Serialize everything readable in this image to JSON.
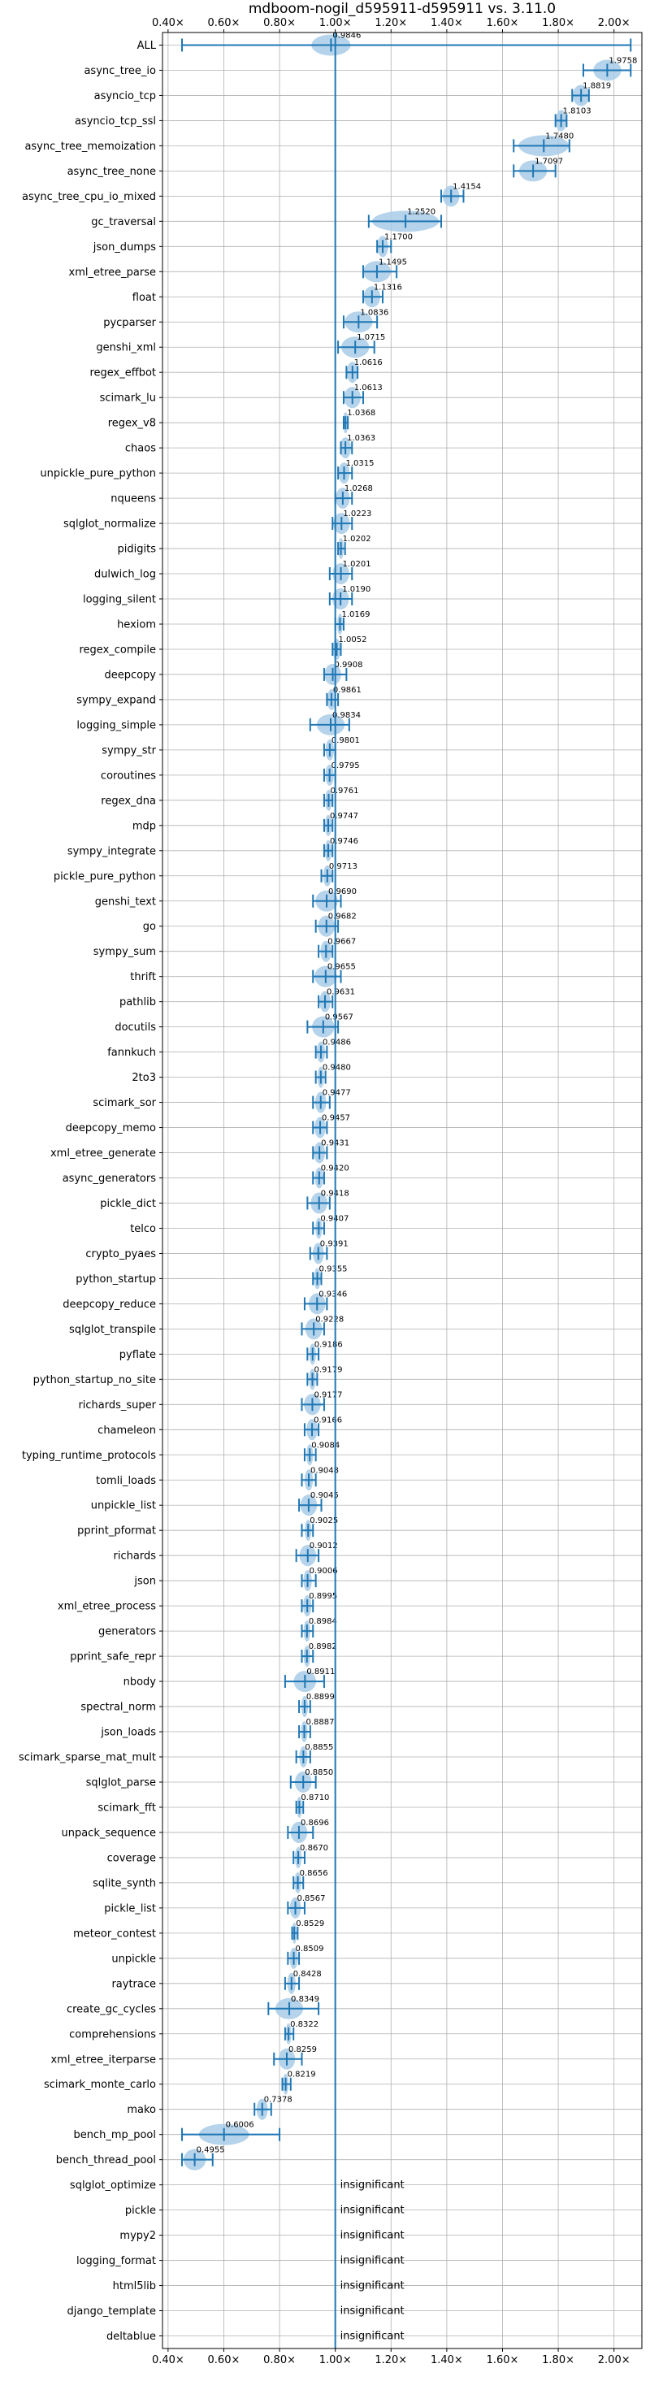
{
  "chart_data": {
    "type": "violin",
    "title": "mdboom-nogil_d595911-d595911 vs. 3.11.0",
    "xlim": [
      0.38,
      2.1
    ],
    "x_ticks": [
      0.4,
      0.6,
      0.8,
      1.0,
      1.2,
      1.4,
      1.6,
      1.8,
      2.0
    ],
    "x_tick_labels": [
      "0.40×",
      "0.60×",
      "0.80×",
      "1.00×",
      "1.20×",
      "1.40×",
      "1.60×",
      "1.80×",
      "2.00×"
    ],
    "reference_line": 1.0,
    "grid": true,
    "accent_color": "#1f77b4",
    "fill_color": "#a8cbe6",
    "insignificant_text": "insignificant",
    "benchmarks": [
      {
        "name": "ALL",
        "mean": 0.9846,
        "label": "0.9846",
        "min": 0.45,
        "max": 2.06,
        "spread": 0.07
      },
      {
        "name": "async_tree_io",
        "mean": 1.9758,
        "label": "1.9758",
        "min": 1.89,
        "max": 2.06,
        "spread": 0.05
      },
      {
        "name": "asyncio_tcp",
        "mean": 1.8819,
        "label": "1.8819",
        "min": 1.85,
        "max": 1.91,
        "spread": 0.03
      },
      {
        "name": "asyncio_tcp_ssl",
        "mean": 1.8103,
        "label": "1.8103",
        "min": 1.79,
        "max": 1.83,
        "spread": 0.02
      },
      {
        "name": "async_tree_memoization",
        "mean": 1.748,
        "label": "1.7480",
        "min": 1.64,
        "max": 1.84,
        "spread": 0.09
      },
      {
        "name": "async_tree_none",
        "mean": 1.7097,
        "label": "1.7097",
        "min": 1.64,
        "max": 1.79,
        "spread": 0.05
      },
      {
        "name": "async_tree_cpu_io_mixed",
        "mean": 1.4154,
        "label": "1.4154",
        "min": 1.38,
        "max": 1.46,
        "spread": 0.03
      },
      {
        "name": "gc_traversal",
        "mean": 1.252,
        "label": "1.2520",
        "min": 1.12,
        "max": 1.38,
        "spread": 0.12
      },
      {
        "name": "json_dumps",
        "mean": 1.17,
        "label": "1.1700",
        "min": 1.15,
        "max": 1.2,
        "spread": 0.02
      },
      {
        "name": "xml_etree_parse",
        "mean": 1.1495,
        "label": "1.1495",
        "min": 1.1,
        "max": 1.22,
        "spread": 0.05
      },
      {
        "name": "float",
        "mean": 1.1316,
        "label": "1.1316",
        "min": 1.1,
        "max": 1.17,
        "spread": 0.03
      },
      {
        "name": "pycparser",
        "mean": 1.0836,
        "label": "1.0836",
        "min": 1.03,
        "max": 1.15,
        "spread": 0.05
      },
      {
        "name": "genshi_xml",
        "mean": 1.0715,
        "label": "1.0715",
        "min": 1.01,
        "max": 1.14,
        "spread": 0.05
      },
      {
        "name": "regex_effbot",
        "mean": 1.0616,
        "label": "1.0616",
        "min": 1.04,
        "max": 1.08,
        "spread": 0.02
      },
      {
        "name": "scimark_lu",
        "mean": 1.0613,
        "label": "1.0613",
        "min": 1.03,
        "max": 1.1,
        "spread": 0.03
      },
      {
        "name": "regex_v8",
        "mean": 1.0368,
        "label": "1.0368",
        "min": 1.03,
        "max": 1.045,
        "spread": 0.01
      },
      {
        "name": "chaos",
        "mean": 1.0363,
        "label": "1.0363",
        "min": 1.02,
        "max": 1.06,
        "spread": 0.02
      },
      {
        "name": "unpickle_pure_python",
        "mean": 1.0315,
        "label": "1.0315",
        "min": 1.01,
        "max": 1.06,
        "spread": 0.02
      },
      {
        "name": "nqueens",
        "mean": 1.0268,
        "label": "1.0268",
        "min": 1.0,
        "max": 1.06,
        "spread": 0.025
      },
      {
        "name": "sqlglot_normalize",
        "mean": 1.0223,
        "label": "1.0223",
        "min": 0.99,
        "max": 1.06,
        "spread": 0.03
      },
      {
        "name": "pidigits",
        "mean": 1.0202,
        "label": "1.0202",
        "min": 1.01,
        "max": 1.035,
        "spread": 0.01
      },
      {
        "name": "dulwich_log",
        "mean": 1.0201,
        "label": "1.0201",
        "min": 0.98,
        "max": 1.06,
        "spread": 0.03
      },
      {
        "name": "logging_silent",
        "mean": 1.019,
        "label": "1.0190",
        "min": 0.98,
        "max": 1.06,
        "spread": 0.03
      },
      {
        "name": "hexiom",
        "mean": 1.0169,
        "label": "1.0169",
        "min": 1.0,
        "max": 1.03,
        "spread": 0.01
      },
      {
        "name": "regex_compile",
        "mean": 1.0052,
        "label": "1.0052",
        "min": 0.99,
        "max": 1.02,
        "spread": 0.015
      },
      {
        "name": "deepcopy",
        "mean": 0.9908,
        "label": "0.9908",
        "min": 0.96,
        "max": 1.04,
        "spread": 0.03
      },
      {
        "name": "sympy_expand",
        "mean": 0.9861,
        "label": "0.9861",
        "min": 0.97,
        "max": 1.01,
        "spread": 0.015
      },
      {
        "name": "logging_simple",
        "mean": 0.9834,
        "label": "0.9834",
        "min": 0.91,
        "max": 1.05,
        "spread": 0.05
      },
      {
        "name": "sympy_str",
        "mean": 0.9801,
        "label": "0.9801",
        "min": 0.96,
        "max": 1.0,
        "spread": 0.015
      },
      {
        "name": "coroutines",
        "mean": 0.9795,
        "label": "0.9795",
        "min": 0.96,
        "max": 1.0,
        "spread": 0.015
      },
      {
        "name": "regex_dna",
        "mean": 0.9761,
        "label": "0.9761",
        "min": 0.96,
        "max": 0.99,
        "spread": 0.012
      },
      {
        "name": "mdp",
        "mean": 0.9747,
        "label": "0.9747",
        "min": 0.96,
        "max": 0.99,
        "spread": 0.012
      },
      {
        "name": "sympy_integrate",
        "mean": 0.9746,
        "label": "0.9746",
        "min": 0.96,
        "max": 0.99,
        "spread": 0.012
      },
      {
        "name": "pickle_pure_python",
        "mean": 0.9713,
        "label": "0.9713",
        "min": 0.95,
        "max": 0.99,
        "spread": 0.015
      },
      {
        "name": "genshi_text",
        "mean": 0.969,
        "label": "0.9690",
        "min": 0.92,
        "max": 1.02,
        "spread": 0.04
      },
      {
        "name": "go",
        "mean": 0.9682,
        "label": "0.9682",
        "min": 0.93,
        "max": 1.01,
        "spread": 0.03
      },
      {
        "name": "sympy_sum",
        "mean": 0.9667,
        "label": "0.9667",
        "min": 0.94,
        "max": 0.99,
        "spread": 0.02
      },
      {
        "name": "thrift",
        "mean": 0.9655,
        "label": "0.9655",
        "min": 0.92,
        "max": 1.02,
        "spread": 0.04
      },
      {
        "name": "pathlib",
        "mean": 0.9631,
        "label": "0.9631",
        "min": 0.94,
        "max": 0.99,
        "spread": 0.02
      },
      {
        "name": "docutils",
        "mean": 0.9567,
        "label": "0.9567",
        "min": 0.9,
        "max": 1.01,
        "spread": 0.04
      },
      {
        "name": "fannkuch",
        "mean": 0.9486,
        "label": "0.9486",
        "min": 0.93,
        "max": 0.97,
        "spread": 0.015
      },
      {
        "name": "2to3",
        "mean": 0.948,
        "label": "0.9480",
        "min": 0.93,
        "max": 0.965,
        "spread": 0.012
      },
      {
        "name": "scimark_sor",
        "mean": 0.9477,
        "label": "0.9477",
        "min": 0.92,
        "max": 0.98,
        "spread": 0.02
      },
      {
        "name": "deepcopy_memo",
        "mean": 0.9457,
        "label": "0.9457",
        "min": 0.92,
        "max": 0.97,
        "spread": 0.02
      },
      {
        "name": "xml_etree_generate",
        "mean": 0.9431,
        "label": "0.9431",
        "min": 0.92,
        "max": 0.97,
        "spread": 0.02
      },
      {
        "name": "async_generators",
        "mean": 0.942,
        "label": "0.9420",
        "min": 0.92,
        "max": 0.96,
        "spread": 0.015
      },
      {
        "name": "pickle_dict",
        "mean": 0.9418,
        "label": "0.9418",
        "min": 0.9,
        "max": 0.98,
        "spread": 0.03
      },
      {
        "name": "telco",
        "mean": 0.9407,
        "label": "0.9407",
        "min": 0.92,
        "max": 0.96,
        "spread": 0.012
      },
      {
        "name": "crypto_pyaes",
        "mean": 0.9391,
        "label": "0.9391",
        "min": 0.91,
        "max": 0.97,
        "spread": 0.02
      },
      {
        "name": "python_startup",
        "mean": 0.9355,
        "label": "0.9355",
        "min": 0.92,
        "max": 0.95,
        "spread": 0.012
      },
      {
        "name": "deepcopy_reduce",
        "mean": 0.9346,
        "label": "0.9346",
        "min": 0.89,
        "max": 0.97,
        "spread": 0.03
      },
      {
        "name": "sqlglot_transpile",
        "mean": 0.9228,
        "label": "0.9228",
        "min": 0.88,
        "max": 0.96,
        "spread": 0.03
      },
      {
        "name": "pyflate",
        "mean": 0.9186,
        "label": "0.9186",
        "min": 0.9,
        "max": 0.94,
        "spread": 0.012
      },
      {
        "name": "python_startup_no_site",
        "mean": 0.9179,
        "label": "0.9179",
        "min": 0.9,
        "max": 0.935,
        "spread": 0.012
      },
      {
        "name": "richards_super",
        "mean": 0.9177,
        "label": "0.9177",
        "min": 0.88,
        "max": 0.96,
        "spread": 0.03
      },
      {
        "name": "chameleon",
        "mean": 0.9166,
        "label": "0.9166",
        "min": 0.89,
        "max": 0.94,
        "spread": 0.02
      },
      {
        "name": "typing_runtime_protocols",
        "mean": 0.9084,
        "label": "0.9084",
        "min": 0.89,
        "max": 0.93,
        "spread": 0.012
      },
      {
        "name": "tomli_loads",
        "mean": 0.9048,
        "label": "0.9048",
        "min": 0.88,
        "max": 0.93,
        "spread": 0.015
      },
      {
        "name": "unpickle_list",
        "mean": 0.9045,
        "label": "0.9045",
        "min": 0.87,
        "max": 0.95,
        "spread": 0.03
      },
      {
        "name": "pprint_pformat",
        "mean": 0.9025,
        "label": "0.9025",
        "min": 0.88,
        "max": 0.92,
        "spread": 0.012
      },
      {
        "name": "richards",
        "mean": 0.9012,
        "label": "0.9012",
        "min": 0.86,
        "max": 0.94,
        "spread": 0.03
      },
      {
        "name": "json",
        "mean": 0.9006,
        "label": "0.9006",
        "min": 0.88,
        "max": 0.93,
        "spread": 0.015
      },
      {
        "name": "xml_etree_process",
        "mean": 0.8995,
        "label": "0.8995",
        "min": 0.88,
        "max": 0.92,
        "spread": 0.015
      },
      {
        "name": "generators",
        "mean": 0.8984,
        "label": "0.8984",
        "min": 0.88,
        "max": 0.92,
        "spread": 0.012
      },
      {
        "name": "pprint_safe_repr",
        "mean": 0.8982,
        "label": "0.8982",
        "min": 0.88,
        "max": 0.92,
        "spread": 0.012
      },
      {
        "name": "nbody",
        "mean": 0.8911,
        "label": "0.8911",
        "min": 0.82,
        "max": 0.96,
        "spread": 0.04
      },
      {
        "name": "spectral_norm",
        "mean": 0.8899,
        "label": "0.8899",
        "min": 0.87,
        "max": 0.91,
        "spread": 0.012
      },
      {
        "name": "json_loads",
        "mean": 0.8887,
        "label": "0.8887",
        "min": 0.87,
        "max": 0.91,
        "spread": 0.012
      },
      {
        "name": "scimark_sparse_mat_mult",
        "mean": 0.8855,
        "label": "0.8855",
        "min": 0.86,
        "max": 0.91,
        "spread": 0.015
      },
      {
        "name": "sqlglot_parse",
        "mean": 0.885,
        "label": "0.8850",
        "min": 0.84,
        "max": 0.93,
        "spread": 0.03
      },
      {
        "name": "scimark_fft",
        "mean": 0.871,
        "label": "0.8710",
        "min": 0.86,
        "max": 0.885,
        "spread": 0.01
      },
      {
        "name": "unpack_sequence",
        "mean": 0.8696,
        "label": "0.8696",
        "min": 0.83,
        "max": 0.92,
        "spread": 0.03
      },
      {
        "name": "coverage",
        "mean": 0.867,
        "label": "0.8670",
        "min": 0.85,
        "max": 0.89,
        "spread": 0.012
      },
      {
        "name": "sqlite_synth",
        "mean": 0.8656,
        "label": "0.8656",
        "min": 0.85,
        "max": 0.885,
        "spread": 0.012
      },
      {
        "name": "pickle_list",
        "mean": 0.8567,
        "label": "0.8567",
        "min": 0.83,
        "max": 0.89,
        "spread": 0.02
      },
      {
        "name": "meteor_contest",
        "mean": 0.8529,
        "label": "0.8529",
        "min": 0.845,
        "max": 0.865,
        "spread": 0.008
      },
      {
        "name": "unpickle",
        "mean": 0.8509,
        "label": "0.8509",
        "min": 0.83,
        "max": 0.87,
        "spread": 0.015
      },
      {
        "name": "raytrace",
        "mean": 0.8428,
        "label": "0.8428",
        "min": 0.82,
        "max": 0.87,
        "spread": 0.015
      },
      {
        "name": "create_gc_cycles",
        "mean": 0.8349,
        "label": "0.8349",
        "min": 0.76,
        "max": 0.94,
        "spread": 0.05
      },
      {
        "name": "comprehensions",
        "mean": 0.8322,
        "label": "0.8322",
        "min": 0.82,
        "max": 0.85,
        "spread": 0.01
      },
      {
        "name": "xml_etree_iterparse",
        "mean": 0.8259,
        "label": "0.8259",
        "min": 0.78,
        "max": 0.88,
        "spread": 0.03
      },
      {
        "name": "scimark_monte_carlo",
        "mean": 0.8219,
        "label": "0.8219",
        "min": 0.81,
        "max": 0.84,
        "spread": 0.01
      },
      {
        "name": "mako",
        "mean": 0.7378,
        "label": "0.7378",
        "min": 0.71,
        "max": 0.77,
        "spread": 0.02
      },
      {
        "name": "bench_mp_pool",
        "mean": 0.6006,
        "label": "0.6006",
        "min": 0.45,
        "max": 0.8,
        "spread": 0.09
      },
      {
        "name": "bench_thread_pool",
        "mean": 0.4955,
        "label": "0.4955",
        "min": 0.45,
        "max": 0.56,
        "spread": 0.04
      },
      {
        "name": "sqlglot_optimize",
        "mean": null,
        "label": "insignificant"
      },
      {
        "name": "pickle",
        "mean": null,
        "label": "insignificant"
      },
      {
        "name": "mypy2",
        "mean": null,
        "label": "insignificant"
      },
      {
        "name": "logging_format",
        "mean": null,
        "label": "insignificant"
      },
      {
        "name": "html5lib",
        "mean": null,
        "label": "insignificant"
      },
      {
        "name": "django_template",
        "mean": null,
        "label": "insignificant"
      },
      {
        "name": "deltablue",
        "mean": null,
        "label": "insignificant"
      }
    ]
  }
}
